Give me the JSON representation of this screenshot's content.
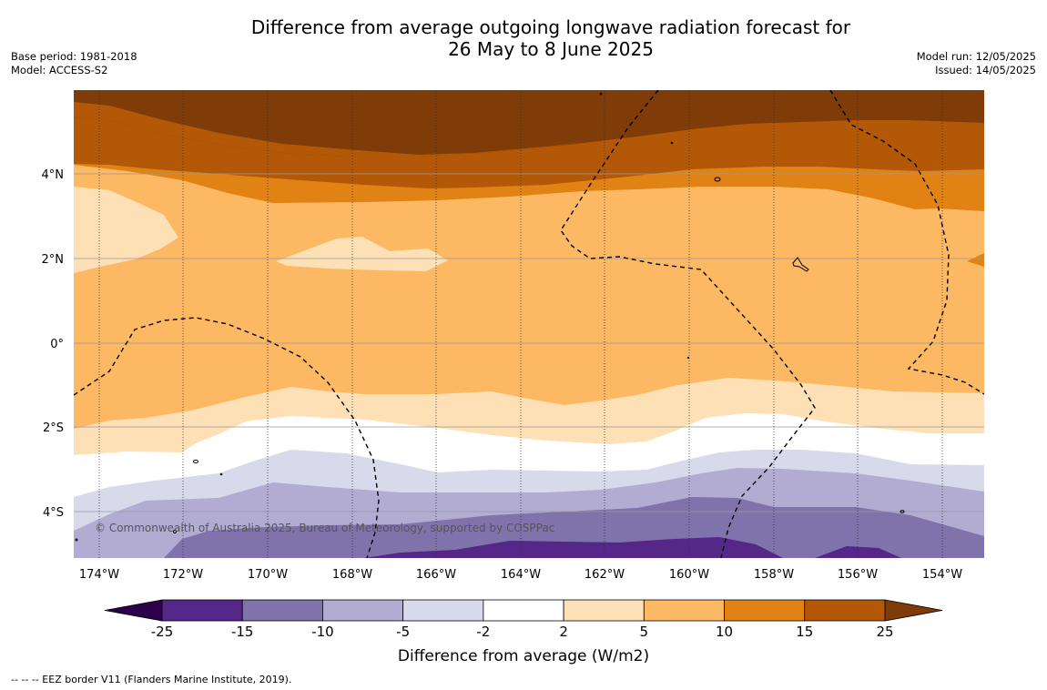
{
  "title_line1": "Difference from average outgoing longwave radiation forecast for",
  "title_line2": "26 May to 8 June 2025",
  "base_period": "Base period: 1981-2018",
  "model": "Model: ACCESS-S2",
  "model_run": "Model run: 12/05/2025",
  "issued": "Issued: 14/05/2025",
  "copyright": "© Commonwealth of Australia 2025, Bureau of Meteorology, supported by COSPPac",
  "footnote": "--  --  -- EEZ border V11 (Flanders Marine Institute, 2019).",
  "map": {
    "lat_labels": [
      "4°N",
      "2°N",
      "0°",
      "2°S",
      "4°S"
    ],
    "lon_labels": [
      "174°W",
      "172°W",
      "170°W",
      "168°W",
      "166°W",
      "164°W",
      "162°W",
      "160°W",
      "158°W",
      "156°W",
      "154°W"
    ]
  },
  "colorbar": {
    "title": "Difference from average (W/m2)",
    "levels": [
      "-25",
      "-15",
      "-10",
      "-5",
      "-2",
      "2",
      "5",
      "10",
      "15",
      "25"
    ],
    "under_color": "#2d004b",
    "over_color": "#7f3b08",
    "colors": [
      "#542788",
      "#8073ac",
      "#b2abd2",
      "#d8daeb",
      "#ffffff",
      "#fee0b6",
      "#fdb863",
      "#e08214",
      "#b35806"
    ]
  }
}
